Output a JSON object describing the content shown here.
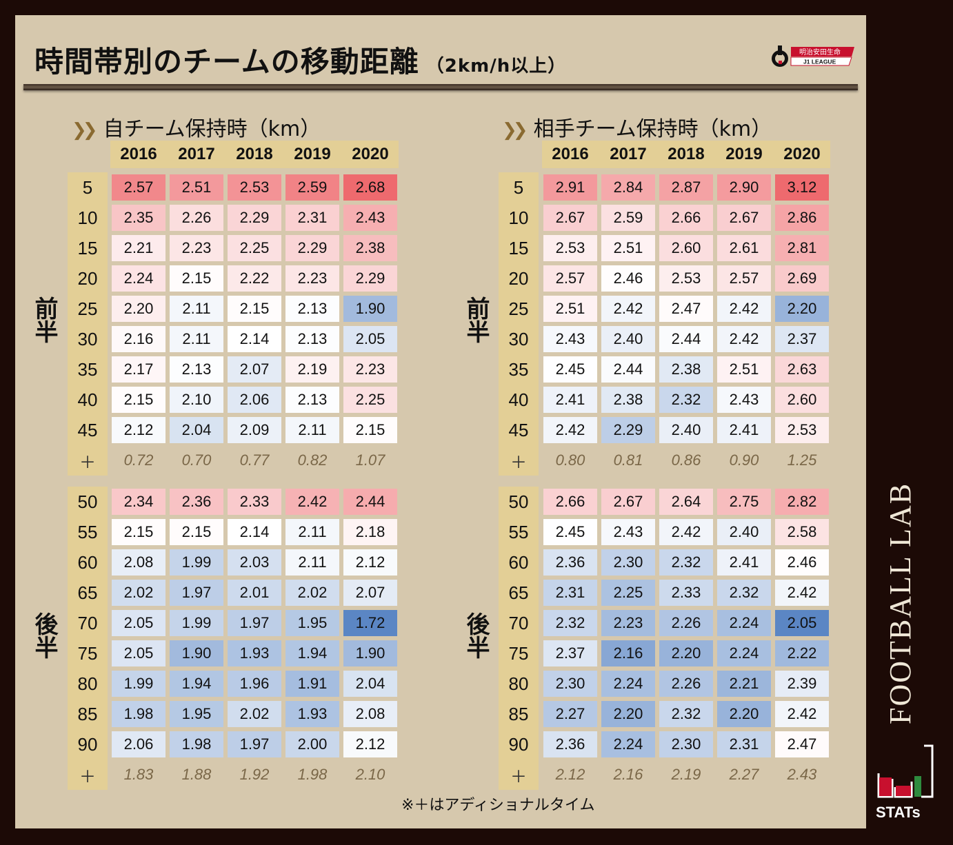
{
  "header": {
    "title": "時間帯別のチームの移動距離",
    "subtitle": "（2km/h以上）",
    "logo_text_top": "明治安田生命",
    "logo_text_bottom": "J1 LEAGUE"
  },
  "note": "※＋はアディショナルタイム",
  "brand": {
    "vertical_text": "FOOTBALL LAB",
    "stats_text": "STATs"
  },
  "half_labels": {
    "first": "前半",
    "second": "後半"
  },
  "colors": {
    "high": "#ee6a6e",
    "low": "#5b86c4",
    "mid": "#ffffff",
    "header_bg": "#e3cf96",
    "panel_bg": "#d6c8ad"
  },
  "chart_data": [
    {
      "type": "table",
      "title": "自チーム保持時（km）",
      "years": [
        "2016",
        "2017",
        "2018",
        "2019",
        "2020"
      ],
      "first_half": {
        "minutes": [
          "5",
          "10",
          "15",
          "20",
          "25",
          "30",
          "35",
          "40",
          "45"
        ],
        "values": [
          [
            2.57,
            2.51,
            2.53,
            2.59,
            2.68
          ],
          [
            2.35,
            2.26,
            2.29,
            2.31,
            2.43
          ],
          [
            2.21,
            2.23,
            2.25,
            2.29,
            2.38
          ],
          [
            2.24,
            2.15,
            2.22,
            2.23,
            2.29
          ],
          [
            2.2,
            2.11,
            2.15,
            2.13,
            1.9
          ],
          [
            2.16,
            2.11,
            2.14,
            2.13,
            2.05
          ],
          [
            2.17,
            2.13,
            2.07,
            2.19,
            2.23
          ],
          [
            2.15,
            2.1,
            2.06,
            2.13,
            2.25
          ],
          [
            2.12,
            2.04,
            2.09,
            2.11,
            2.15
          ]
        ],
        "extra_label": "＋",
        "extra": [
          0.72,
          0.7,
          0.77,
          0.82,
          1.07
        ]
      },
      "second_half": {
        "minutes": [
          "50",
          "55",
          "60",
          "65",
          "70",
          "75",
          "80",
          "85",
          "90"
        ],
        "values": [
          [
            2.34,
            2.36,
            2.33,
            2.42,
            2.44
          ],
          [
            2.15,
            2.15,
            2.14,
            2.11,
            2.18
          ],
          [
            2.08,
            1.99,
            2.03,
            2.11,
            2.12
          ],
          [
            2.02,
            1.97,
            2.01,
            2.02,
            2.07
          ],
          [
            2.05,
            1.99,
            1.97,
            1.95,
            1.72
          ],
          [
            2.05,
            1.9,
            1.93,
            1.94,
            1.9
          ],
          [
            1.99,
            1.94,
            1.96,
            1.91,
            2.04
          ],
          [
            1.98,
            1.95,
            2.02,
            1.93,
            2.08
          ],
          [
            2.06,
            1.98,
            1.97,
            2.0,
            2.12
          ]
        ],
        "extra_label": "＋",
        "extra": [
          1.83,
          1.88,
          1.92,
          1.98,
          2.1
        ]
      }
    },
    {
      "type": "table",
      "title": "相手チーム保持時（km）",
      "years": [
        "2016",
        "2017",
        "2018",
        "2019",
        "2020"
      ],
      "first_half": {
        "minutes": [
          "5",
          "10",
          "15",
          "20",
          "25",
          "30",
          "35",
          "40",
          "45"
        ],
        "values": [
          [
            2.91,
            2.84,
            2.87,
            2.9,
            3.12
          ],
          [
            2.67,
            2.59,
            2.66,
            2.67,
            2.86
          ],
          [
            2.53,
            2.51,
            2.6,
            2.61,
            2.81
          ],
          [
            2.57,
            2.46,
            2.53,
            2.57,
            2.69
          ],
          [
            2.51,
            2.42,
            2.47,
            2.42,
            2.2
          ],
          [
            2.43,
            2.4,
            2.44,
            2.42,
            2.37
          ],
          [
            2.45,
            2.44,
            2.38,
            2.51,
            2.63
          ],
          [
            2.41,
            2.38,
            2.32,
            2.43,
            2.6
          ],
          [
            2.42,
            2.29,
            2.4,
            2.41,
            2.53
          ]
        ],
        "extra_label": "＋",
        "extra": [
          0.8,
          0.81,
          0.86,
          0.9,
          1.25
        ]
      },
      "second_half": {
        "minutes": [
          "50",
          "55",
          "60",
          "65",
          "70",
          "75",
          "80",
          "85",
          "90"
        ],
        "values": [
          [
            2.66,
            2.67,
            2.64,
            2.75,
            2.82
          ],
          [
            2.45,
            2.43,
            2.42,
            2.4,
            2.58
          ],
          [
            2.36,
            2.3,
            2.32,
            2.41,
            2.46
          ],
          [
            2.31,
            2.25,
            2.33,
            2.32,
            2.42
          ],
          [
            2.32,
            2.23,
            2.26,
            2.24,
            2.05
          ],
          [
            2.37,
            2.16,
            2.2,
            2.24,
            2.22
          ],
          [
            2.3,
            2.24,
            2.26,
            2.21,
            2.39
          ],
          [
            2.27,
            2.2,
            2.32,
            2.2,
            2.42
          ],
          [
            2.36,
            2.24,
            2.3,
            2.31,
            2.47
          ]
        ],
        "extra_label": "＋",
        "extra": [
          2.12,
          2.16,
          2.19,
          2.27,
          2.43
        ]
      }
    }
  ]
}
